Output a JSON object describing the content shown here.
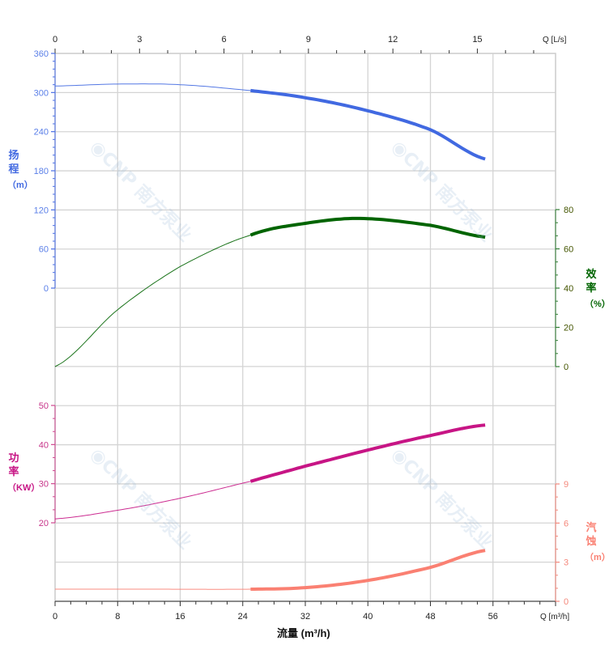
{
  "chart_data": {
    "type": "line",
    "x_axis_bottom": {
      "label": "Q [m³/h]",
      "title": "流量 (m³/h)",
      "range": [
        0,
        64
      ],
      "ticks": [
        0,
        8,
        16,
        24,
        32,
        40,
        48,
        56
      ]
    },
    "x_axis_top": {
      "label": "Q [L/s]",
      "range": [
        0,
        17.78
      ],
      "ticks": [
        0,
        3,
        6,
        9,
        12,
        15
      ]
    },
    "grid": true,
    "operating_range": [
      25,
      55
    ],
    "series": [
      {
        "key": "head",
        "axis_title": [
          "扬",
          "程",
          "（m）"
        ],
        "color": "#4169e1",
        "axis_side": "left",
        "range": [
          0,
          360
        ],
        "ticks": [
          0,
          60,
          120,
          180,
          240,
          300,
          360
        ],
        "x": [
          0,
          8,
          16,
          25,
          32,
          40,
          48,
          55
        ],
        "y": [
          310,
          313,
          312,
          303,
          292,
          272,
          243,
          198
        ]
      },
      {
        "key": "efficiency",
        "axis_title": [
          "效",
          "率",
          "（%）"
        ],
        "color": "#006400",
        "axis_side": "right",
        "range": [
          0,
          80
        ],
        "ticks": [
          0,
          20,
          40,
          60,
          80
        ],
        "x": [
          0,
          8,
          16,
          25,
          32,
          39,
          48,
          55
        ],
        "y": [
          0,
          29,
          51,
          67,
          73,
          75.5,
          72,
          66
        ]
      },
      {
        "key": "power",
        "axis_title": [
          "功",
          "率",
          "（KW）"
        ],
        "color": "#c71585",
        "axis_side": "left",
        "range": [
          20,
          50
        ],
        "ticks": [
          20,
          30,
          40,
          50
        ],
        "x": [
          0,
          8,
          16,
          25,
          32,
          40,
          48,
          55
        ],
        "y": [
          21,
          23.2,
          26.3,
          30.6,
          34.5,
          38.6,
          42.3,
          45
        ]
      },
      {
        "key": "npsh",
        "axis_title": [
          "汽",
          "蚀",
          "（m）"
        ],
        "color": "#fa8072",
        "axis_side": "right",
        "range": [
          0,
          9
        ],
        "ticks": [
          0,
          3,
          6,
          9
        ],
        "x": [
          0,
          12,
          25,
          32,
          40,
          48,
          55
        ],
        "y": [
          0.93,
          0.93,
          0.93,
          1.05,
          1.6,
          2.6,
          3.9
        ]
      }
    ]
  },
  "watermark": "CNP 南方泵业"
}
